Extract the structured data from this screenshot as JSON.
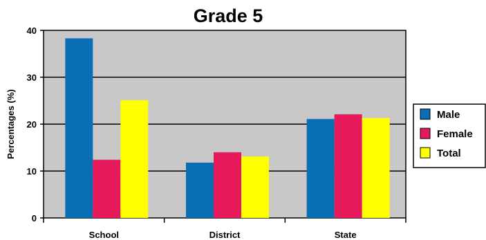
{
  "chart_data": {
    "type": "bar",
    "title": "Grade 5",
    "xlabel": "",
    "ylabel": "Percentages (%)",
    "ylim": [
      0,
      40
    ],
    "yticks": [
      0,
      10,
      20,
      30,
      40
    ],
    "grid": true,
    "legend_position": "right",
    "categories": [
      "School",
      "District",
      "State"
    ],
    "series": [
      {
        "name": "Male",
        "color": "#0a6eb4",
        "values": [
          38.3,
          11.8,
          21.1
        ]
      },
      {
        "name": "Female",
        "color": "#e6195a",
        "values": [
          12.4,
          14.0,
          22.1
        ]
      },
      {
        "name": "Total",
        "color": "#ffff00",
        "values": [
          25.1,
          13.1,
          21.3
        ]
      }
    ],
    "plot_background": "#c8c8c8"
  }
}
